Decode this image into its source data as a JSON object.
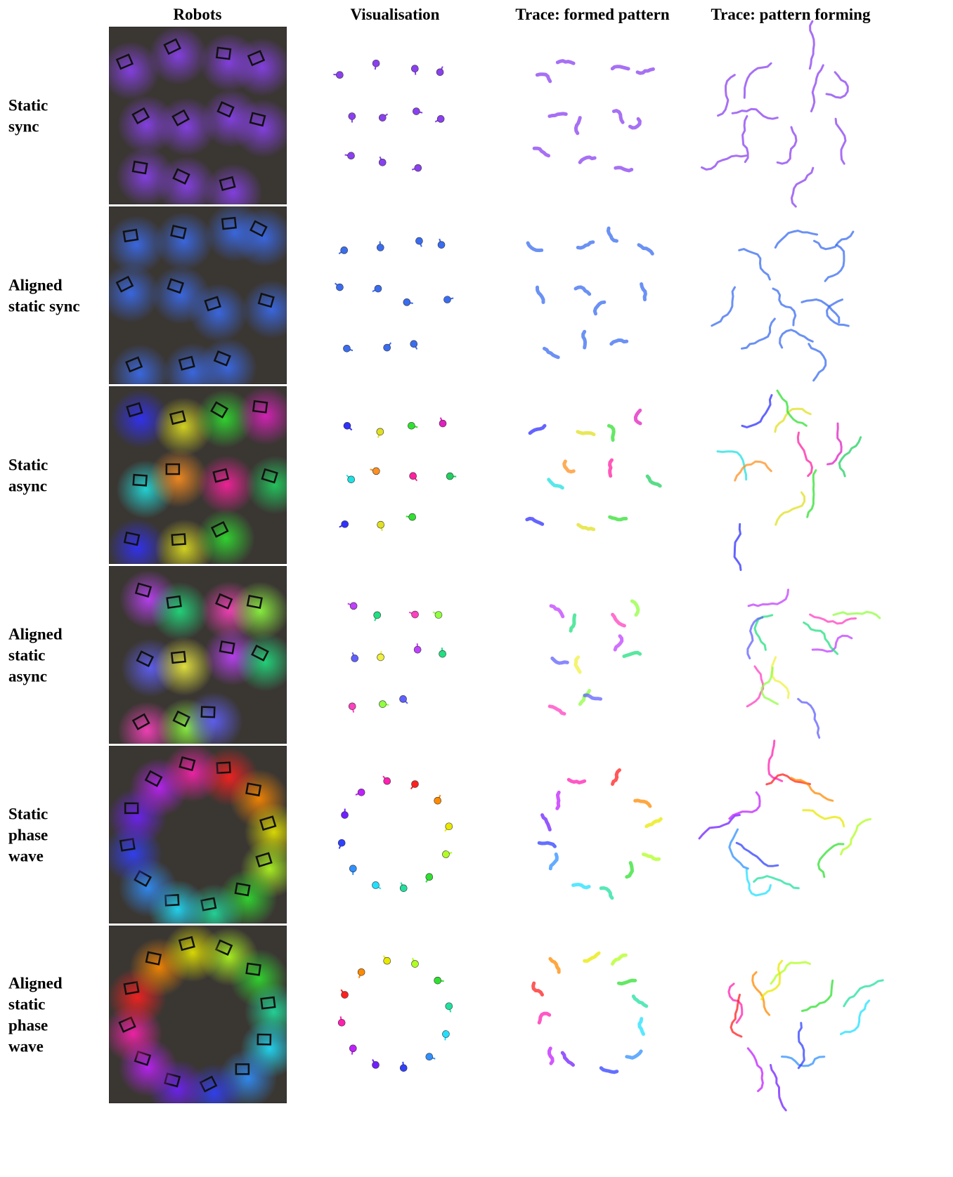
{
  "header": {
    "columns": [
      "Robots",
      "Visualisation",
      "Trace: formed pattern",
      "Trace: pattern forming"
    ]
  },
  "rows": [
    {
      "label": [
        "Static",
        "sync"
      ]
    },
    {
      "label": [
        "Aligned",
        "static sync"
      ]
    },
    {
      "label": [
        "Static",
        "async"
      ]
    },
    {
      "label": [
        "Aligned",
        "static",
        "async"
      ]
    },
    {
      "label": [
        "Static",
        "phase",
        "wave"
      ]
    },
    {
      "label": [
        "Aligned",
        "static",
        "phase",
        "wave"
      ]
    }
  ]
}
